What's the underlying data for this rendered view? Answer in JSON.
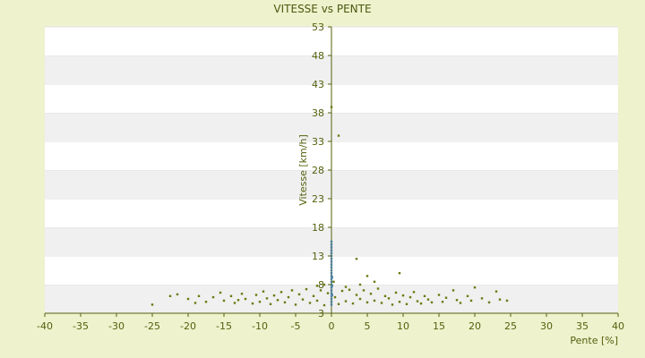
{
  "chart_data": {
    "type": "scatter",
    "title": "VITESSE vs PENTE",
    "xlabel": "Pente [%]",
    "ylabel": "Vitesse [km/h]",
    "xlim": [
      -40,
      40
    ],
    "ylim": [
      3,
      53
    ],
    "x_ticks": [
      "-40",
      "-35",
      "-30",
      "-25",
      "-20",
      "-15",
      "-10",
      "-5",
      "0",
      "5",
      "10",
      "15",
      "20",
      "25",
      "30",
      "35",
      "40"
    ],
    "y_ticks": [
      "3",
      "8",
      "13",
      "18",
      "23",
      "28",
      "33",
      "38",
      "43",
      "48",
      "53"
    ],
    "grid": "horizontal alternating bands",
    "colors": {
      "background": "#eef2cd",
      "plot_band_light": "#ffffff",
      "plot_band_dark": "#f0f0f0",
      "points": "#6b7a12",
      "near_zero_points": "#4a7fa0",
      "axis": "#55600e",
      "text": "#55600e"
    },
    "series": [
      {
        "points": [
          [
            0.0,
            39.0
          ],
          [
            1.0,
            34.0
          ],
          [
            3.5,
            12.5
          ],
          [
            9.5,
            10.0
          ],
          [
            5.0,
            9.5
          ],
          [
            6.0,
            8.5
          ],
          [
            -25.0,
            4.5
          ],
          [
            -22.5,
            6.0
          ],
          [
            -21.5,
            6.3
          ],
          [
            -20.0,
            5.5
          ],
          [
            -18.5,
            6.0
          ],
          [
            -17.5,
            5.0
          ],
          [
            -16.5,
            5.8
          ],
          [
            -15.5,
            6.6
          ],
          [
            -15.0,
            5.2
          ],
          [
            -14.0,
            6.0
          ],
          [
            -13.5,
            4.8
          ],
          [
            -12.5,
            6.4
          ],
          [
            -12.0,
            5.5
          ],
          [
            -11.0,
            4.7
          ],
          [
            -10.5,
            6.2
          ],
          [
            -10.0,
            5.0
          ],
          [
            -9.5,
            6.8
          ],
          [
            -9.0,
            5.6
          ],
          [
            -8.5,
            4.6
          ],
          [
            -8.0,
            6.1
          ],
          [
            -7.5,
            5.3
          ],
          [
            -7.0,
            6.7
          ],
          [
            -6.5,
            4.9
          ],
          [
            -6.0,
            5.8
          ],
          [
            -5.5,
            7.0
          ],
          [
            -5.0,
            4.5
          ],
          [
            -4.5,
            6.3
          ],
          [
            -4.0,
            5.4
          ],
          [
            -3.5,
            7.2
          ],
          [
            -3.0,
            4.8
          ],
          [
            -2.5,
            6.0
          ],
          [
            -2.0,
            5.2
          ],
          [
            -1.5,
            7.0
          ],
          [
            -1.0,
            4.4
          ],
          [
            -0.5,
            6.5
          ],
          [
            0.5,
            5.8
          ],
          [
            1.0,
            4.6
          ],
          [
            1.5,
            6.9
          ],
          [
            2.0,
            5.1
          ],
          [
            2.5,
            7.1
          ],
          [
            3.0,
            4.7
          ],
          [
            3.5,
            6.2
          ],
          [
            4.0,
            5.5
          ],
          [
            4.5,
            7.0
          ],
          [
            5.0,
            4.9
          ],
          [
            5.5,
            6.4
          ],
          [
            6.0,
            5.2
          ],
          [
            6.5,
            7.3
          ],
          [
            7.0,
            4.8
          ],
          [
            7.5,
            6.0
          ],
          [
            8.0,
            5.6
          ],
          [
            8.5,
            4.5
          ],
          [
            9.0,
            6.6
          ],
          [
            9.5,
            5.0
          ],
          [
            10.0,
            6.1
          ],
          [
            10.5,
            4.6
          ],
          [
            11.0,
            5.8
          ],
          [
            11.5,
            6.7
          ],
          [
            12.0,
            5.1
          ],
          [
            12.5,
            4.7
          ],
          [
            13.0,
            6.0
          ],
          [
            13.5,
            5.4
          ],
          [
            14.0,
            4.9
          ],
          [
            15.0,
            6.2
          ],
          [
            15.5,
            5.0
          ],
          [
            16.0,
            5.7
          ],
          [
            17.0,
            7.0
          ],
          [
            17.5,
            5.3
          ],
          [
            18.0,
            4.8
          ],
          [
            19.0,
            6.0
          ],
          [
            19.5,
            5.2
          ],
          [
            20.0,
            7.5
          ],
          [
            21.0,
            5.6
          ],
          [
            22.0,
            4.9
          ],
          [
            23.0,
            6.8
          ],
          [
            23.5,
            5.4
          ],
          [
            24.5,
            5.2
          ],
          [
            -19.0,
            4.8
          ],
          [
            -13.0,
            5.3
          ],
          [
            -2.0,
            7.8
          ],
          [
            -1.0,
            8.0
          ],
          [
            0.3,
            8.5
          ],
          [
            2.0,
            7.6
          ],
          [
            4.0,
            8.0
          ]
        ]
      },
      {
        "points": [
          [
            0.0,
            4.5
          ],
          [
            0.0,
            5.0
          ],
          [
            0.0,
            5.5
          ],
          [
            0.0,
            6.0
          ],
          [
            0.0,
            6.5
          ],
          [
            0.0,
            7.0
          ],
          [
            0.0,
            7.5
          ],
          [
            0.0,
            8.0
          ],
          [
            0.0,
            8.5
          ],
          [
            0.0,
            9.0
          ],
          [
            0.0,
            9.5
          ],
          [
            0.0,
            10.0
          ],
          [
            0.0,
            10.5
          ],
          [
            0.0,
            11.0
          ],
          [
            0.0,
            11.5
          ],
          [
            0.0,
            12.0
          ],
          [
            0.0,
            12.5
          ],
          [
            0.0,
            13.0
          ],
          [
            0.0,
            13.5
          ],
          [
            0.0,
            14.0
          ],
          [
            0.0,
            14.5
          ],
          [
            0.0,
            15.0
          ],
          [
            0.0,
            15.5
          ],
          [
            0.1,
            6.2
          ],
          [
            0.1,
            7.8
          ],
          [
            0.1,
            9.3
          ]
        ]
      }
    ]
  }
}
